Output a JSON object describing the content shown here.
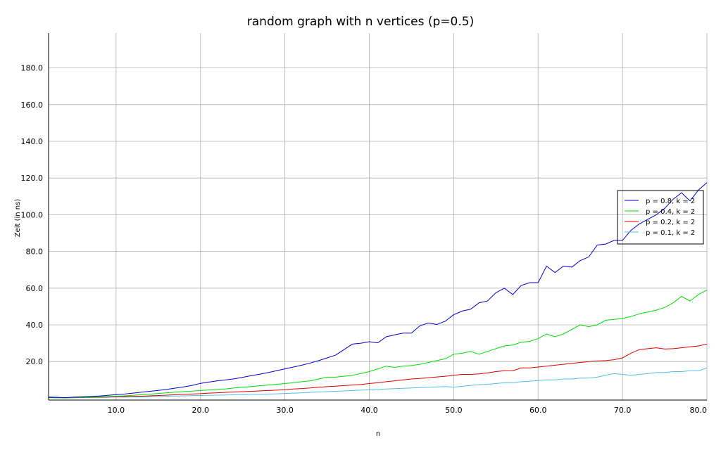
{
  "chart_data": {
    "type": "line",
    "title": "random graph with n vertices (p=0.5)",
    "xlabel": "n",
    "ylabel": "Zeit (in ns)",
    "xlim": [
      2,
      80
    ],
    "ylim": [
      -1,
      199
    ],
    "x_ticks": [
      10,
      20,
      30,
      40,
      50,
      60,
      70,
      80
    ],
    "y_ticks": [
      20,
      40,
      60,
      80,
      100,
      120,
      140,
      160,
      180
    ],
    "x_tick_labels": [
      "10.0",
      "20.0",
      "30.0",
      "40.0",
      "50.0",
      "60.0",
      "70.0",
      "80.0"
    ],
    "y_tick_labels": [
      "20.0",
      "40.0",
      "60.0",
      "80.0",
      "100.0",
      "120.0",
      "140.0",
      "160.0",
      "180.0"
    ],
    "grid": true,
    "legend_position": "right",
    "x": [
      2,
      3,
      4,
      5,
      6,
      7,
      8,
      9,
      10,
      11,
      12,
      13,
      14,
      15,
      16,
      17,
      18,
      19,
      20,
      21,
      22,
      23,
      24,
      25,
      26,
      27,
      28,
      29,
      30,
      31,
      32,
      33,
      34,
      35,
      36,
      37,
      38,
      39,
      40,
      41,
      42,
      43,
      44,
      45,
      46,
      47,
      48,
      49,
      50,
      51,
      52,
      53,
      54,
      55,
      56,
      57,
      58,
      59,
      60,
      61,
      62,
      63,
      64,
      65,
      66,
      67,
      68,
      69,
      70,
      71,
      72,
      73,
      74,
      75,
      76,
      77,
      78,
      79,
      80
    ],
    "series": [
      {
        "name": "p = 0.8, k = 2",
        "color": "#0000cc",
        "values": [
          0.5,
          0.4,
          0.3,
          0.6,
          0.8,
          1.0,
          1.2,
          1.6,
          2.0,
          2.3,
          2.8,
          3.3,
          3.8,
          4.3,
          4.8,
          5.5,
          6.2,
          7.0,
          8.1,
          8.8,
          9.5,
          10.0,
          10.6,
          11.4,
          12.3,
          13.1,
          14.0,
          15.0,
          16.0,
          17.0,
          18.0,
          19.2,
          20.5,
          22.0,
          23.5,
          26.5,
          29.5,
          30.0,
          30.8,
          30.2,
          33.5,
          34.5,
          35.5,
          35.5,
          39.5,
          41.0,
          40.2,
          42.0,
          45.5,
          47.5,
          48.5,
          52.0,
          53.0,
          57.5,
          60.0,
          56.5,
          61.5,
          63.0,
          63.0,
          72.0,
          68.5,
          72.0,
          71.5,
          75.0,
          77.0,
          83.5,
          84.0,
          86.0,
          86.0,
          91.5,
          95.0,
          97.5,
          100.0,
          103.5,
          108.5,
          112.0,
          107.5,
          113.5,
          117.5
        ]
      },
      {
        "name": "p = 0.4, k = 2",
        "color": "#00dd00",
        "values": [
          0.3,
          0.2,
          0.2,
          0.4,
          0.5,
          0.6,
          0.8,
          0.9,
          1.1,
          1.3,
          1.6,
          1.9,
          2.2,
          2.6,
          3.0,
          3.3,
          3.6,
          3.9,
          4.2,
          4.5,
          4.8,
          5.1,
          5.6,
          6.0,
          6.4,
          6.8,
          7.2,
          7.6,
          8.0,
          8.5,
          9.0,
          9.5,
          10.5,
          11.5,
          11.5,
          12.0,
          12.5,
          13.5,
          14.5,
          16.0,
          17.5,
          16.8,
          17.5,
          17.8,
          18.5,
          19.5,
          20.5,
          21.5,
          24.0,
          24.5,
          25.5,
          24.0,
          25.5,
          27.0,
          28.5,
          29.0,
          30.5,
          31.0,
          32.5,
          35.0,
          33.5,
          35.0,
          37.5,
          40.0,
          39.0,
          40.0,
          42.5,
          43.0,
          43.5,
          44.5,
          46.0,
          47.0,
          48.0,
          49.5,
          52.0,
          55.5,
          53.0,
          56.5,
          59.0
        ]
      },
      {
        "name": "p = 0.2, k = 2",
        "color": "#dd0000",
        "values": [
          0.6,
          0.4,
          0.3,
          0.3,
          0.4,
          0.5,
          0.6,
          0.7,
          0.8,
          0.9,
          1.0,
          1.1,
          1.3,
          1.5,
          1.7,
          1.9,
          2.1,
          2.3,
          2.5,
          2.8,
          3.0,
          3.2,
          3.4,
          3.6,
          3.8,
          4.0,
          4.2,
          4.4,
          4.7,
          5.0,
          5.3,
          5.6,
          6.0,
          6.3,
          6.6,
          6.9,
          7.2,
          7.5,
          8.0,
          8.5,
          9.0,
          9.5,
          10.0,
          10.5,
          10.8,
          11.2,
          11.6,
          12.0,
          12.5,
          13.0,
          13.0,
          13.3,
          13.8,
          14.5,
          15.0,
          15.0,
          16.5,
          16.5,
          17.0,
          17.5,
          18.0,
          18.5,
          19.0,
          19.5,
          20.0,
          20.3,
          20.5,
          21.0,
          22.0,
          24.5,
          26.5,
          27.0,
          27.5,
          26.8,
          27.0,
          27.5,
          28.0,
          28.5,
          29.5
        ]
      },
      {
        "name": "p = 0.1, k = 2",
        "color": "#55bbee",
        "values": [
          0.8,
          0.5,
          0.2,
          0.3,
          0.3,
          0.4,
          0.4,
          0.5,
          0.6,
          0.6,
          0.7,
          0.8,
          0.9,
          1.0,
          1.1,
          1.2,
          1.3,
          1.4,
          1.5,
          1.6,
          1.7,
          1.8,
          1.9,
          2.0,
          2.1,
          2.2,
          2.3,
          2.4,
          2.6,
          2.8,
          3.0,
          3.2,
          3.4,
          3.6,
          3.8,
          4.0,
          4.2,
          4.4,
          4.6,
          4.8,
          5.0,
          5.2,
          5.4,
          5.6,
          5.8,
          6.0,
          6.2,
          6.4,
          6.0,
          6.5,
          7.0,
          7.3,
          7.6,
          8.0,
          8.5,
          8.5,
          9.0,
          9.3,
          9.6,
          10.0,
          10.0,
          10.5,
          10.5,
          11.0,
          11.0,
          11.5,
          12.5,
          13.5,
          13.0,
          12.5,
          13.0,
          13.5,
          14.0,
          14.0,
          14.5,
          14.5,
          15.0,
          15.0,
          16.5
        ]
      }
    ]
  }
}
